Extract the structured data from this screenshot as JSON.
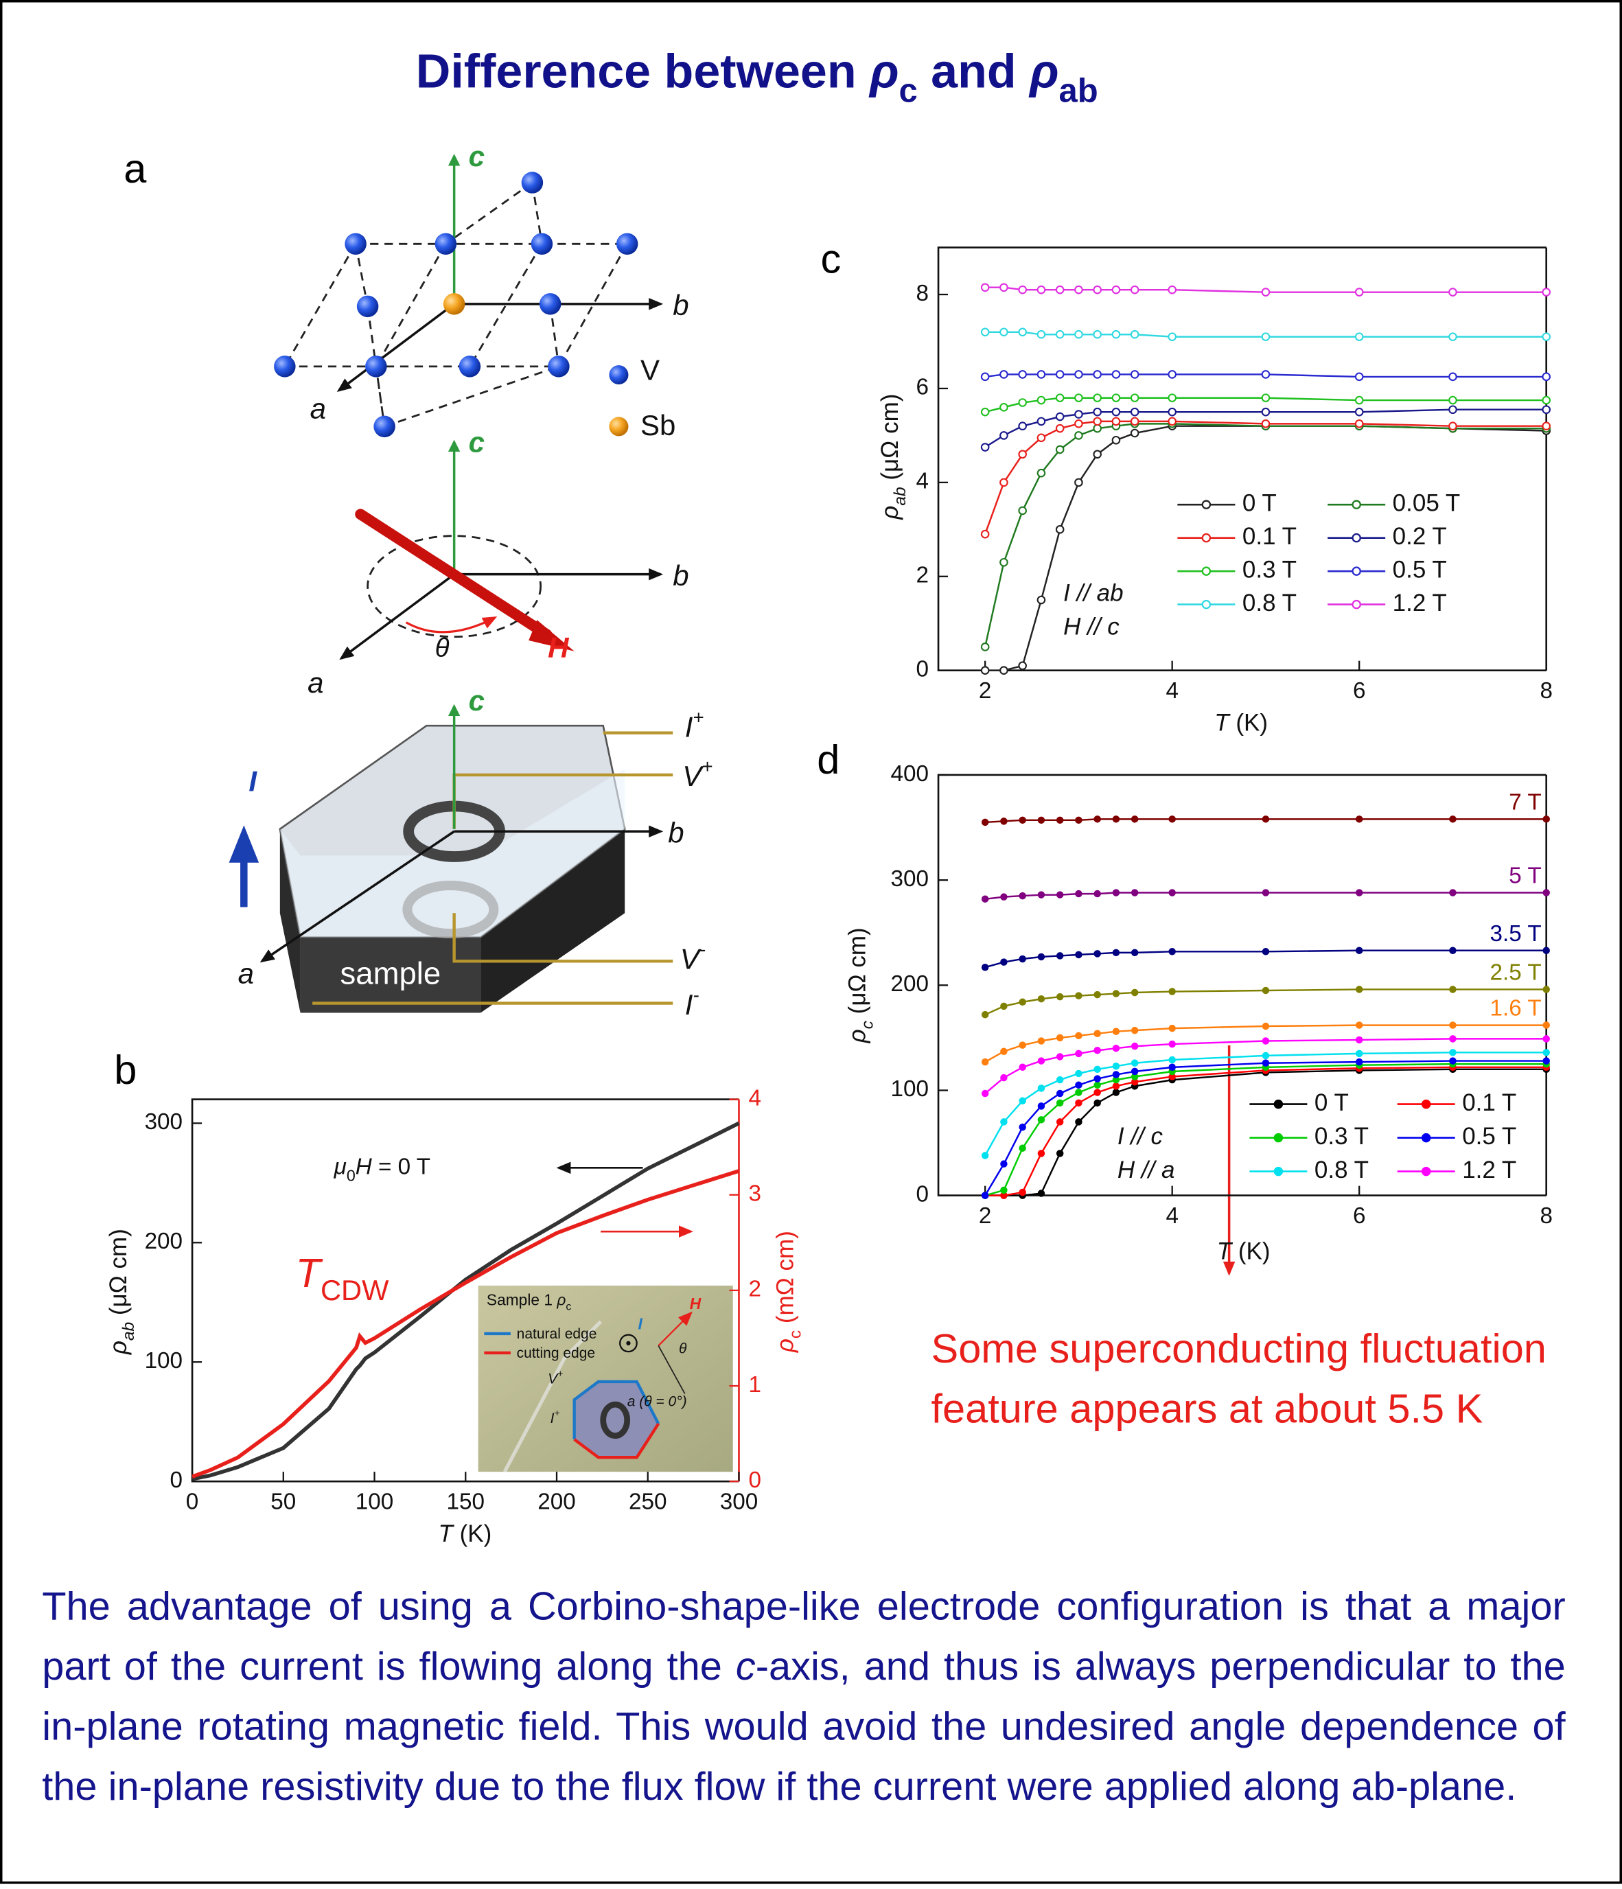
{
  "title": [
    "Difference between ",
    "ρ",
    "c",
    " and ",
    "ρ",
    "ab"
  ],
  "panels": [
    "a",
    "b",
    "c",
    "d"
  ],
  "diagram": {
    "lattice": {
      "axes": [
        "c",
        "b",
        "a"
      ],
      "legend": [
        "V",
        "Sb"
      ]
    },
    "field": {
      "axes": [
        "c",
        "b",
        "a"
      ],
      "angle": "θ",
      "field": "H"
    },
    "sample": {
      "axes": [
        "c",
        "b",
        "a"
      ],
      "leads": [
        [
          "I",
          "+"
        ],
        [
          "V",
          "+"
        ],
        [
          "V",
          "-"
        ],
        [
          "I",
          "-"
        ]
      ],
      "current": "I",
      "label": "sample"
    }
  },
  "chart_data": [
    {
      "type": "line",
      "x": [
        0,
        10,
        25,
        50,
        75,
        90,
        92,
        95,
        100,
        125,
        150,
        175,
        200,
        225,
        250,
        275,
        300
      ],
      "series": [
        {
          "color": "#333333",
          "values": [
            2,
            5,
            12,
            28,
            61,
            94,
            97,
            103,
            108,
            138,
            169,
            194,
            216,
            239,
            262,
            281,
            300
          ]
        },
        {
          "color": "#e8201b",
          "axis": "y2",
          "values": [
            0.05,
            0.12,
            0.25,
            0.6,
            1.05,
            1.4,
            1.52,
            1.45,
            1.5,
            1.8,
            2.08,
            2.35,
            2.6,
            2.78,
            2.95,
            3.1,
            3.25
          ]
        }
      ],
      "xlim": [
        0,
        300
      ],
      "xticks": [
        0,
        50,
        100,
        150,
        200,
        250,
        300
      ],
      "ylim": [
        0,
        320
      ],
      "yticks": [
        0,
        100,
        200,
        300
      ],
      "y2lim": [
        0,
        4
      ],
      "y2ticks": [
        0,
        1,
        2,
        3,
        4
      ],
      "y2color": "#e8201b",
      "xlabel": [
        "T",
        " (K)"
      ],
      "ylabel": [
        "ρ",
        "ab",
        " (μΩ cm)"
      ],
      "y2label": [
        "ρ",
        "c",
        " (mΩ cm)"
      ],
      "annotations": [
        [
          "μ",
          "0",
          "H",
          " = 0 T"
        ],
        [
          "T",
          "CDW"
        ]
      ],
      "inset": {
        "title": [
          "Sample 1 ",
          "ρ",
          "c"
        ],
        "legend": [
          {
            "name": "natural edge",
            "color": "#1e78c8"
          },
          {
            "name": "cutting edge",
            "color": "#e8201b"
          }
        ],
        "labels": [
          [
            "H"
          ],
          [
            "θ"
          ],
          [
            "V",
            "+"
          ],
          [
            "I",
            "+"
          ],
          [
            "a (θ = 0°)"
          ],
          [
            "I"
          ]
        ]
      }
    },
    {
      "type": "line",
      "marker": "open-circle",
      "legend": "lower right",
      "x": [
        2,
        2.2,
        2.4,
        2.6,
        2.8,
        3,
        3.2,
        3.4,
        3.6,
        4,
        5,
        6,
        7,
        8
      ],
      "series": [
        {
          "name": "0 T",
          "color": "#222222",
          "values": [
            0,
            0,
            0.1,
            1.5,
            3.0,
            4.0,
            4.6,
            4.9,
            5.05,
            5.2,
            5.2,
            5.2,
            5.15,
            5.1
          ]
        },
        {
          "name": "0.05 T",
          "color": "#1f7a1f",
          "values": [
            0.5,
            2.3,
            3.4,
            4.2,
            4.7,
            5.0,
            5.15,
            5.2,
            5.25,
            5.25,
            5.2,
            5.2,
            5.15,
            5.15
          ]
        },
        {
          "name": "0.1 T",
          "color": "#e8201b",
          "values": [
            2.9,
            4.0,
            4.6,
            4.95,
            5.15,
            5.25,
            5.3,
            5.3,
            5.3,
            5.3,
            5.25,
            5.25,
            5.2,
            5.2
          ]
        },
        {
          "name": "0.2 T",
          "color": "#1a1a8c",
          "values": [
            4.75,
            5.0,
            5.2,
            5.3,
            5.4,
            5.45,
            5.5,
            5.5,
            5.5,
            5.5,
            5.5,
            5.5,
            5.55,
            5.55
          ]
        },
        {
          "name": "0.3 T",
          "color": "#20c020",
          "values": [
            5.5,
            5.6,
            5.7,
            5.75,
            5.8,
            5.8,
            5.8,
            5.8,
            5.8,
            5.8,
            5.8,
            5.75,
            5.75,
            5.75
          ]
        },
        {
          "name": "0.5 T",
          "color": "#2a2ad0",
          "values": [
            6.25,
            6.3,
            6.3,
            6.3,
            6.3,
            6.3,
            6.3,
            6.3,
            6.3,
            6.3,
            6.3,
            6.25,
            6.25,
            6.25
          ]
        },
        {
          "name": "0.8 T",
          "color": "#30d8e0",
          "values": [
            7.2,
            7.2,
            7.2,
            7.15,
            7.15,
            7.15,
            7.15,
            7.15,
            7.15,
            7.1,
            7.1,
            7.1,
            7.1,
            7.1
          ]
        },
        {
          "name": "1.2 T",
          "color": "#e030e0",
          "values": [
            8.15,
            8.15,
            8.1,
            8.1,
            8.1,
            8.1,
            8.1,
            8.1,
            8.1,
            8.1,
            8.05,
            8.05,
            8.05,
            8.05
          ]
        }
      ],
      "xlim": [
        1.5,
        8
      ],
      "xticks": [
        2,
        4,
        6,
        8
      ],
      "ylim": [
        0,
        9
      ],
      "yticks": [
        0,
        2,
        4,
        6,
        8
      ],
      "xlabel": [
        "T",
        " (K)"
      ],
      "ylabel": [
        "ρ",
        "ab",
        " (μΩ cm)"
      ],
      "annotations": [
        "I // ab",
        "H // c"
      ]
    },
    {
      "type": "line",
      "marker": "circle",
      "legend": "lower right",
      "x": [
        2,
        2.2,
        2.4,
        2.6,
        2.8,
        3,
        3.2,
        3.4,
        3.6,
        4,
        5,
        6,
        7,
        8
      ],
      "series": [
        {
          "name": "0 T",
          "color": "#000000",
          "values": [
            0,
            0,
            0,
            2,
            40,
            70,
            88,
            98,
            104,
            110,
            117,
            119,
            120,
            120
          ]
        },
        {
          "name": "0.1 T",
          "color": "#ff0000",
          "values": [
            0,
            0,
            3,
            40,
            70,
            88,
            98,
            104,
            108,
            113,
            119,
            121,
            122,
            122
          ]
        },
        {
          "name": "0.3 T",
          "color": "#00cc00",
          "values": [
            0,
            5,
            45,
            72,
            88,
            98,
            105,
            110,
            113,
            118,
            122,
            124,
            125,
            125
          ]
        },
        {
          "name": "0.5 T",
          "color": "#0000ee",
          "values": [
            0,
            30,
            65,
            85,
            97,
            105,
            111,
            115,
            118,
            122,
            126,
            127,
            128,
            128
          ]
        },
        {
          "name": "0.8 T",
          "color": "#00e0ee",
          "values": [
            38,
            70,
            90,
            102,
            110,
            116,
            120,
            123,
            126,
            129,
            133,
            135,
            136,
            136
          ]
        },
        {
          "name": "1.2 T",
          "color": "#ff00ff",
          "values": [
            97,
            112,
            122,
            128,
            132,
            135,
            138,
            140,
            142,
            144,
            147,
            148,
            149,
            149
          ]
        },
        {
          "name": "1.6 T",
          "color": "#ff7f0e",
          "inline_label": true,
          "values": [
            127,
            137,
            143,
            147,
            150,
            152,
            154,
            156,
            157,
            159,
            161,
            162,
            162,
            162
          ]
        },
        {
          "name": "2.5 T",
          "color": "#808000",
          "inline_label": true,
          "values": [
            172,
            180,
            184,
            187,
            189,
            190,
            191,
            192,
            193,
            194,
            195,
            196,
            196,
            196
          ]
        },
        {
          "name": "3.5 T",
          "color": "#000080",
          "inline_label": true,
          "values": [
            217,
            222,
            225,
            227,
            228,
            229,
            230,
            231,
            231,
            232,
            232,
            233,
            233,
            233
          ]
        },
        {
          "name": "5 T",
          "color": "#800080",
          "inline_label": true,
          "values": [
            282,
            284,
            285,
            286,
            286,
            287,
            287,
            288,
            288,
            288,
            288,
            288,
            288,
            288
          ]
        },
        {
          "name": "7 T",
          "color": "#800000",
          "inline_label": true,
          "values": [
            355,
            356,
            357,
            357,
            357,
            357,
            358,
            358,
            358,
            358,
            358,
            358,
            358,
            358
          ]
        }
      ],
      "xlim": [
        1.5,
        8
      ],
      "xticks": [
        2,
        4,
        6,
        8
      ],
      "ylim": [
        0,
        400
      ],
      "yticks": [
        0,
        100,
        200,
        300,
        400
      ],
      "xlabel": [
        "T",
        " (K)"
      ],
      "ylabel": [
        "ρ",
        "c",
        " (μΩ cm)"
      ],
      "annotations": [
        "I // c",
        "H // a"
      ]
    }
  ],
  "note": [
    "Some superconducting fluctuation",
    "feature appears  at about 5.5 K"
  ],
  "body": [
    "The advantage of using a Corbino-shape-like electrode configuration is that a major part of the current is flowing along the ",
    "c",
    "-axis, and thus is always perpendicular to the in-plane rotating magnetic field. This would avoid the undesired angle dependence of the in-plane resistivity due to the flux flow if the current were applied along ab-plane."
  ]
}
